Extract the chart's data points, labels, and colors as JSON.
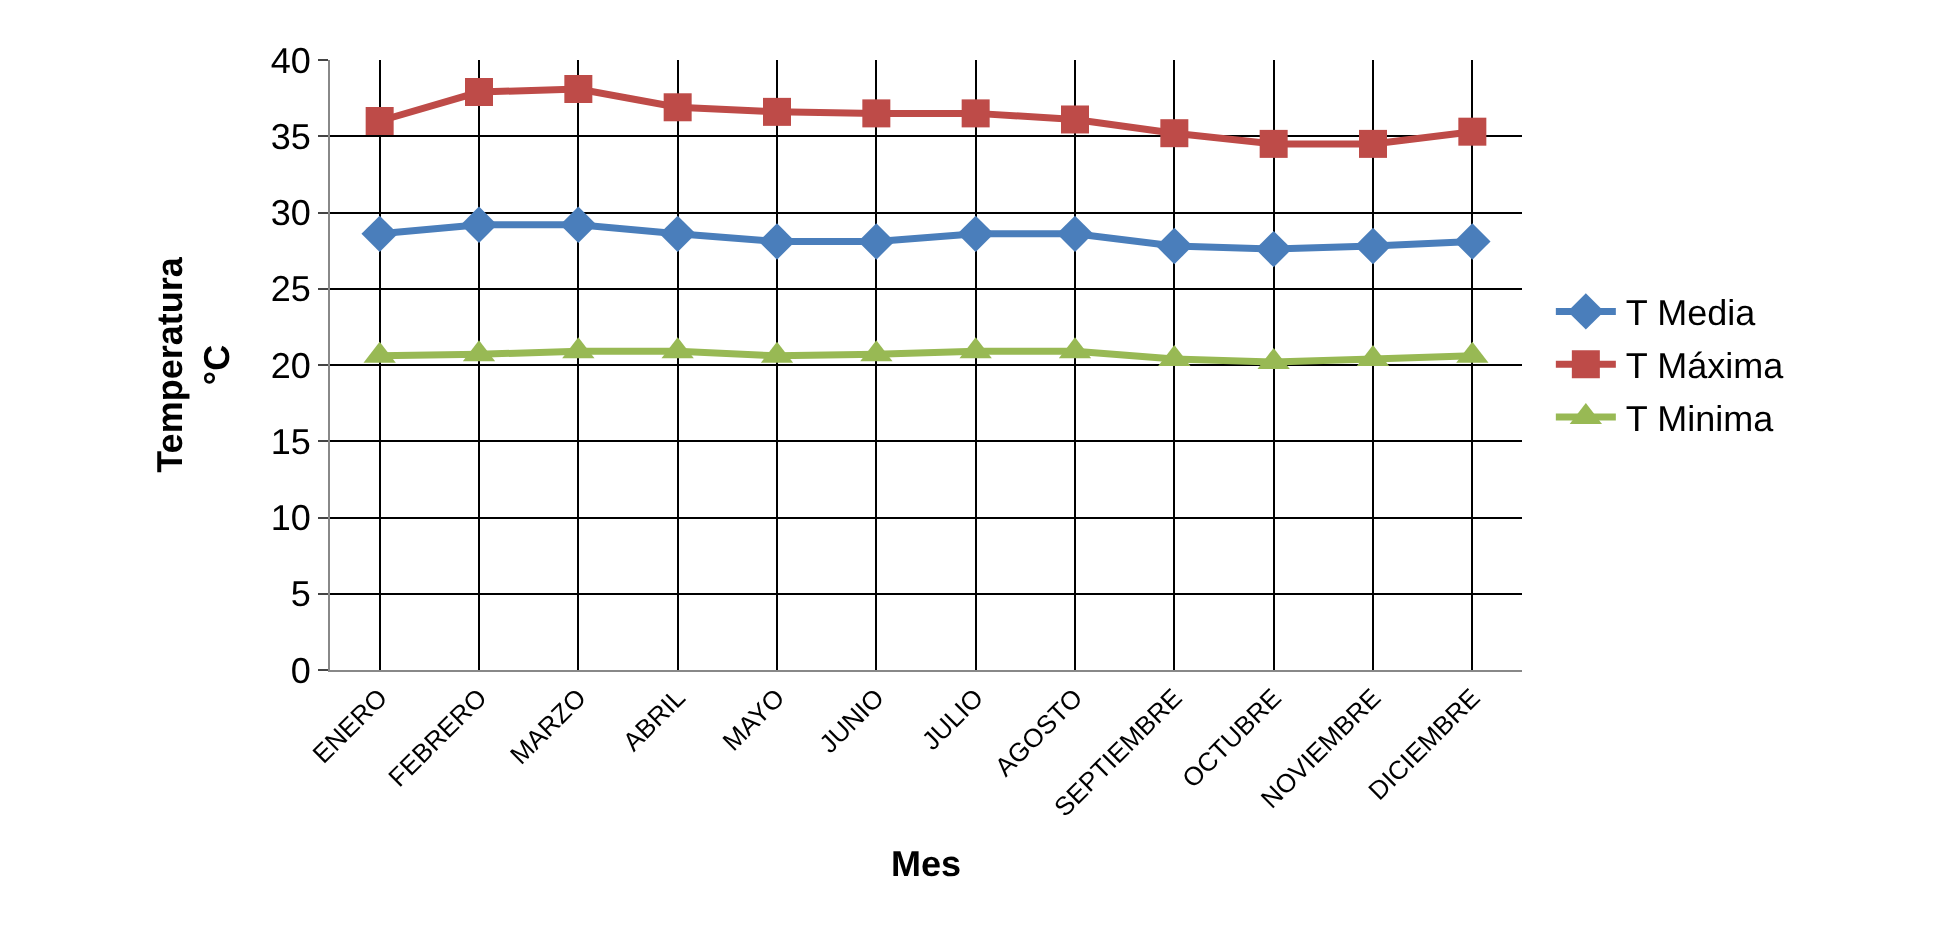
{
  "chart_data": {
    "type": "line",
    "xlabel": "Mes",
    "ylabel": "Temperatura\n°C",
    "categories": [
      "ENERO",
      "FEBRERO",
      "MARZO",
      "ABRIL",
      "MAYO",
      "JUNIO",
      "JULIO",
      "AGOSTO",
      "SEPTIEMBRE",
      "OCTUBRE",
      "NOVIEMBRE",
      "DICIEMBRE"
    ],
    "series": [
      {
        "name": "T Media",
        "color": "#4a7ebb",
        "marker": "diamond",
        "values": [
          28.6,
          29.2,
          29.2,
          28.6,
          28.1,
          28.1,
          28.6,
          28.6,
          27.8,
          27.6,
          27.8,
          28.1
        ]
      },
      {
        "name": "T Máxima",
        "color": "#be4b48",
        "marker": "square",
        "values": [
          36.0,
          37.9,
          38.1,
          36.9,
          36.6,
          36.5,
          36.5,
          36.1,
          35.2,
          34.5,
          34.5,
          35.3
        ]
      },
      {
        "name": "T Minima",
        "color": "#98b954",
        "marker": "triangle",
        "values": [
          20.6,
          20.7,
          20.9,
          20.9,
          20.6,
          20.7,
          20.9,
          20.9,
          20.4,
          20.2,
          20.4,
          20.6
        ]
      }
    ],
    "ylim": [
      0,
      40
    ],
    "yticks": [
      0,
      5,
      10,
      15,
      20,
      25,
      30,
      35,
      40
    ],
    "grid": true,
    "legend": "right",
    "line_style": "solid"
  }
}
